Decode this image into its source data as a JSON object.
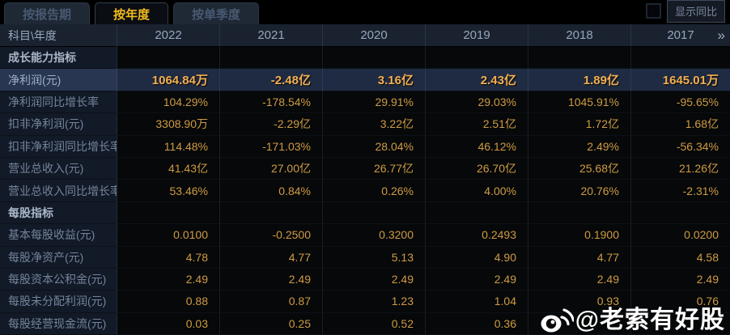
{
  "tabs": [
    {
      "label": "按报告期",
      "active": false
    },
    {
      "label": "按年度",
      "active": true
    },
    {
      "label": "按单季度",
      "active": false
    }
  ],
  "controls": {
    "show_yoy_label": "显示同比",
    "checkbox_checked": false
  },
  "table": {
    "corner_label": "科目\\年度",
    "years": [
      "2022",
      "2021",
      "2020",
      "2019",
      "2018",
      "2017"
    ],
    "more_icon": "»",
    "rows": [
      {
        "type": "section",
        "label": "成长能力指标",
        "values": [
          "",
          "",
          "",
          "",
          "",
          ""
        ]
      },
      {
        "type": "data",
        "highlight": true,
        "label": "净利润(元)",
        "values": [
          "1064.84万",
          "-2.48亿",
          "3.16亿",
          "2.43亿",
          "1.89亿",
          "1645.01万"
        ]
      },
      {
        "type": "data",
        "label": "净利润同比增长率",
        "values": [
          "104.29%",
          "-178.54%",
          "29.91%",
          "29.03%",
          "1045.91%",
          "-95.65%"
        ]
      },
      {
        "type": "data",
        "label": "扣非净利润(元)",
        "values": [
          "3308.90万",
          "-2.29亿",
          "3.22亿",
          "2.51亿",
          "1.72亿",
          "1.68亿"
        ]
      },
      {
        "type": "data",
        "label": "扣非净利润同比增长率",
        "values": [
          "114.48%",
          "-171.03%",
          "28.04%",
          "46.12%",
          "2.49%",
          "-56.34%"
        ]
      },
      {
        "type": "data",
        "label": "营业总收入(元)",
        "values": [
          "41.43亿",
          "27.00亿",
          "26.77亿",
          "26.70亿",
          "25.68亿",
          "21.26亿"
        ]
      },
      {
        "type": "data",
        "label": "营业总收入同比增长率",
        "values": [
          "53.46%",
          "0.84%",
          "0.26%",
          "4.00%",
          "20.76%",
          "-2.31%"
        ]
      },
      {
        "type": "section",
        "label": "每股指标",
        "values": [
          "",
          "",
          "",
          "",
          "",
          ""
        ]
      },
      {
        "type": "data",
        "label": "基本每股收益(元)",
        "values": [
          "0.0100",
          "-0.2500",
          "0.3200",
          "0.2493",
          "0.1900",
          "0.0200"
        ]
      },
      {
        "type": "data",
        "label": "每股净资产(元)",
        "values": [
          "4.78",
          "4.77",
          "5.13",
          "4.90",
          "4.77",
          "4.58"
        ]
      },
      {
        "type": "data",
        "label": "每股资本公积金(元)",
        "values": [
          "2.49",
          "2.49",
          "2.49",
          "2.49",
          "2.49",
          "2.49"
        ]
      },
      {
        "type": "data",
        "label": "每股未分配利润(元)",
        "values": [
          "0.88",
          "0.87",
          "1.23",
          "1.04",
          "0.93",
          "0.76"
        ]
      },
      {
        "type": "data",
        "label": "每股经营现金流(元)",
        "values": [
          "0.03",
          "0.25",
          "0.52",
          "0.36",
          "",
          ""
        ]
      }
    ]
  },
  "watermark": {
    "handle": "@老索有好股",
    "icon": "weibo-icon"
  },
  "colors": {
    "gold": "#cf9b43",
    "gold_bold": "#f3b052",
    "label_fg": "#74849b",
    "section_fg": "#aab7c8",
    "header_fg": "#97a6ba",
    "header_bg": "#1a2230",
    "label_bg": "#121927",
    "cell_bg": "#060809",
    "highlight_bg": "#1f2b42",
    "highlight_label_bg": "#283652",
    "tab_active_fg": "#f2bb1c",
    "tab_inactive_fg": "#485a72",
    "tab_inactive_bg": "#1f2835",
    "grid_line": "rgba(96,115,145,0.22)",
    "watermark_fg": "#ffffff"
  }
}
